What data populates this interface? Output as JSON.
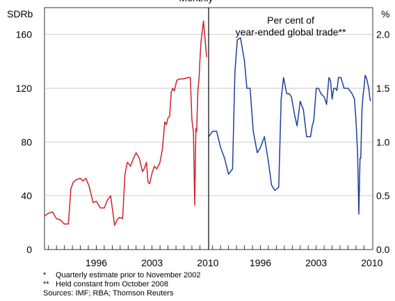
{
  "chart_data": [
    {
      "type": "line",
      "title": "Monthly",
      "ylabel": "SDRb",
      "ylim": [
        0,
        180
      ],
      "yticks": [
        "0",
        "40",
        "80",
        "120",
        "160"
      ],
      "xlim": [
        1989.5,
        2010.1
      ],
      "xticks": [
        {
          "x": 1996,
          "label": "1996"
        },
        {
          "x": 2003,
          "label": "2003"
        },
        {
          "x": 2010,
          "label": "2010"
        }
      ],
      "grid": true,
      "series": [
        {
          "color": "#d0202a",
          "x": [
            1989.5,
            1990.0,
            1990.5,
            1991.0,
            1991.5,
            1992.0,
            1992.5,
            1992.8,
            1993.1,
            1993.5,
            1994.0,
            1994.3,
            1994.7,
            1995.1,
            1995.6,
            1996.0,
            1996.5,
            1997.0,
            1997.4,
            1997.8,
            1998.3,
            1998.6,
            1998.9,
            1999.3,
            1999.6,
            1999.9,
            2000.3,
            2000.6,
            2001.0,
            2001.4,
            2001.8,
            2002.0,
            2002.3,
            2002.5,
            2002.7,
            2003.0,
            2003.3,
            2003.6,
            2004.0,
            2004.3,
            2004.6,
            2004.8,
            2005.0,
            2005.2,
            2005.4,
            2005.6,
            2005.8,
            2006.1,
            2006.5,
            2007.0,
            2007.5,
            2007.8,
            2008.0,
            2008.2,
            2008.35,
            2008.5,
            2008.6,
            2008.75,
            2008.9,
            2009.0,
            2009.15,
            2009.3,
            2009.45,
            2009.6,
            2009.75,
            2009.85
          ],
          "y": [
            25,
            27,
            28,
            23,
            22,
            19,
            19,
            45,
            50,
            52,
            53,
            51,
            53,
            47,
            35,
            36,
            31,
            31,
            37,
            40,
            18,
            22,
            24,
            23,
            56,
            65,
            62,
            67,
            72,
            68,
            58,
            60,
            65,
            50,
            49,
            57,
            62,
            60,
            65,
            75,
            95,
            93,
            98,
            99,
            117,
            120,
            118,
            126,
            127,
            127,
            128,
            128,
            97,
            87,
            33,
            90,
            88,
            118,
            128,
            140,
            155,
            162,
            170,
            160,
            150,
            143
          ]
        }
      ]
    },
    {
      "type": "line",
      "title": "Per cent of year-ended global trade**",
      "ylabel": "%",
      "ylim": [
        0.0,
        2.25
      ],
      "yticks": [
        "0.0",
        "0.5",
        "1.0",
        "1.5",
        "2.0"
      ],
      "xlim": [
        1989.5,
        2010.1
      ],
      "xticks": [
        {
          "x": 1996,
          "label": "1996"
        },
        {
          "x": 2003,
          "label": "2003"
        },
        {
          "x": 2010,
          "label": "2010"
        }
      ],
      "grid": true,
      "series": [
        {
          "color": "#1c3d9e",
          "x": [
            1989.5,
            1990.0,
            1990.5,
            1991.0,
            1991.5,
            1992.0,
            1992.5,
            1992.8,
            1993.1,
            1993.5,
            1994.0,
            1994.3,
            1994.7,
            1995.1,
            1995.6,
            1996.0,
            1996.5,
            1997.0,
            1997.4,
            1997.8,
            1998.3,
            1998.6,
            1998.9,
            1999.3,
            1999.6,
            1999.9,
            2000.3,
            2000.6,
            2001.0,
            2001.4,
            2001.8,
            2002.0,
            2002.3,
            2002.5,
            2002.7,
            2003.0,
            2003.3,
            2003.6,
            2004.0,
            2004.3,
            2004.6,
            2004.8,
            2005.0,
            2005.2,
            2005.4,
            2005.6,
            2005.8,
            2006.1,
            2006.5,
            2007.0,
            2007.5,
            2007.8,
            2008.0,
            2008.2,
            2008.35,
            2008.5,
            2008.6,
            2008.75,
            2008.9,
            2009.0,
            2009.15,
            2009.3,
            2009.45,
            2009.6,
            2009.75,
            2009.85
          ],
          "y": [
            1.05,
            1.1,
            1.1,
            0.95,
            0.85,
            0.7,
            0.75,
            1.65,
            1.95,
            1.97,
            1.75,
            1.5,
            1.5,
            1.1,
            0.9,
            0.95,
            1.05,
            0.82,
            0.6,
            0.55,
            0.58,
            1.4,
            1.6,
            1.45,
            1.45,
            1.42,
            1.25,
            1.15,
            1.38,
            1.3,
            1.05,
            1.05,
            1.05,
            1.15,
            1.2,
            1.5,
            1.5,
            1.45,
            1.42,
            1.35,
            1.6,
            1.57,
            1.4,
            1.5,
            1.5,
            1.48,
            1.6,
            1.6,
            1.5,
            1.5,
            1.45,
            1.4,
            1.2,
            0.9,
            0.33,
            0.85,
            0.85,
            1.3,
            1.45,
            1.5,
            1.62,
            1.6,
            1.55,
            1.5,
            1.4,
            1.38
          ]
        }
      ]
    }
  ],
  "notes": [
    {
      "mark": "*",
      "text": "Quarterly estimate prior to November 2002"
    },
    {
      "mark": "**",
      "text": "Held constant from October 2008"
    }
  ],
  "sources": "Sources: IMF; RBA; Thomson Reuters"
}
